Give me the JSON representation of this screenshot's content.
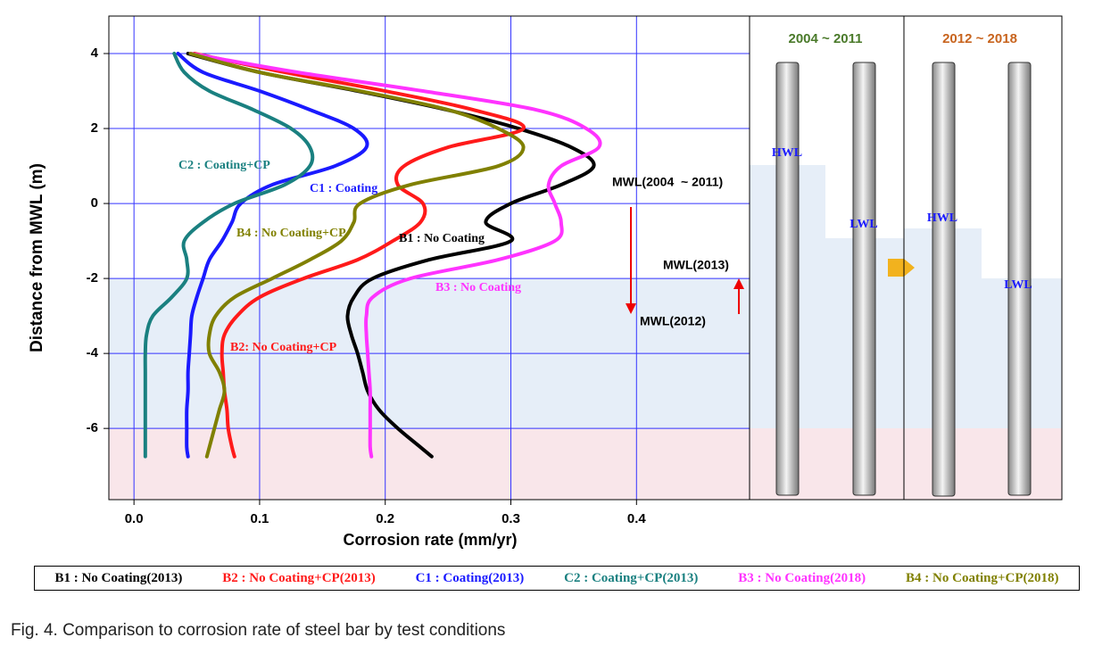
{
  "chart_data": {
    "type": "line",
    "x_label": "Corrosion rate (mm/yr)",
    "y_label": "Distance from MWL (m)",
    "xlim": [
      -0.02,
      0.49
    ],
    "ylim": [
      -7.9,
      5
    ],
    "xticks": [
      {
        "value": 0,
        "label": "0.0"
      },
      0.1,
      0.2,
      0.3,
      0.4
    ],
    "yticks": [
      4,
      2,
      0,
      -2,
      -4,
      -6
    ],
    "grid": true,
    "depth": [
      4,
      3.5,
      3,
      2.5,
      2,
      1.5,
      1,
      0.5,
      0,
      -0.5,
      -1,
      -1.5,
      -2,
      -2.5,
      -3,
      -3.5,
      -4,
      -4.5,
      -5,
      -5.5,
      -6,
      -6.5,
      -6.75
    ],
    "series": [
      {
        "name": "B1 : No Coating(2013)",
        "color": "#000000",
        "values": [
          0.043,
          0.1,
          0.178,
          0.249,
          0.306,
          0.348,
          0.366,
          0.34,
          0.3,
          0.28,
          0.3,
          0.235,
          0.19,
          0.175,
          0.17,
          0.173,
          0.178,
          0.182,
          0.186,
          0.195,
          0.21,
          0.228,
          0.237
        ]
      },
      {
        "name": "B2 : No Coating+CP(2013)",
        "color": "#ff1a1a",
        "values": [
          0.048,
          0.12,
          0.2,
          0.27,
          0.31,
          0.25,
          0.215,
          0.21,
          0.23,
          0.228,
          0.206,
          0.178,
          0.135,
          0.1,
          0.082,
          0.072,
          0.07,
          0.071,
          0.072,
          0.074,
          0.075,
          0.078,
          0.08
        ]
      },
      {
        "name": "C1 : Coating(2013)",
        "color": "#1a1aff",
        "values": [
          0.035,
          0.055,
          0.1,
          0.14,
          0.175,
          0.185,
          0.16,
          0.11,
          0.085,
          0.078,
          0.07,
          0.06,
          0.055,
          0.05,
          0.046,
          0.045,
          0.044,
          0.043,
          0.043,
          0.042,
          0.042,
          0.042,
          0.043
        ]
      },
      {
        "name": "C2 : Coating+CP(2013)",
        "color": "#1a8080",
        "values": [
          0.032,
          0.04,
          0.06,
          0.095,
          0.125,
          0.14,
          0.14,
          0.12,
          0.08,
          0.055,
          0.04,
          0.042,
          0.042,
          0.03,
          0.015,
          0.01,
          0.009,
          0.009,
          0.009,
          0.009,
          0.009,
          0.009,
          0.009
        ]
      },
      {
        "name": "B3 : No Coating(2018)",
        "color": "#ff33ff",
        "values": [
          0.045,
          0.13,
          0.23,
          0.32,
          0.36,
          0.37,
          0.34,
          0.33,
          0.335,
          0.34,
          0.335,
          0.29,
          0.22,
          0.19,
          0.185,
          0.185,
          0.186,
          0.187,
          0.188,
          0.188,
          0.188,
          0.188,
          0.189
        ]
      },
      {
        "name": "B4 : No Coating+CP(2018)",
        "color": "#808000",
        "values": [
          0.045,
          0.1,
          0.18,
          0.25,
          0.29,
          0.31,
          0.29,
          0.22,
          0.18,
          0.175,
          0.165,
          0.14,
          0.11,
          0.08,
          0.065,
          0.06,
          0.06,
          0.068,
          0.072,
          0.068,
          0.064,
          0.06,
          0.058
        ]
      }
    ],
    "annotations": [
      "C2 : Coating+CP",
      "C1 : Coating",
      "B4 : No Coating+CP",
      "B1 : No Coating",
      "B3 : No Coating",
      "B2: No Coating+CP",
      "MWL(2004  ~ 2011)",
      "MWL(2013)",
      "MWL(2012)"
    ]
  },
  "panel": {
    "periods": [
      "2004 ~ 2011",
      "2012 ~ 2018"
    ],
    "levels": [
      "HWL",
      "LWL",
      "HWL",
      "LWL"
    ]
  },
  "caption": "Fig. 4. Comparison to corrosion rate of steel bar by test conditions"
}
